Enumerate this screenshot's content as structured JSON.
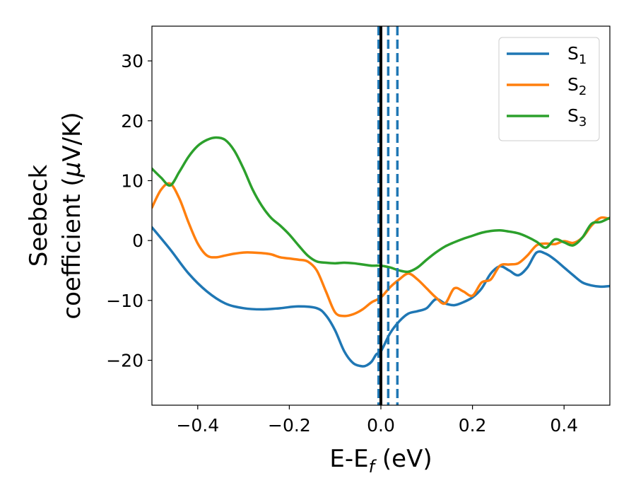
{
  "chart_data": {
    "type": "line",
    "xlabel": {
      "main": "E-E",
      "sub": "f",
      "unit": " (eV)"
    },
    "ylabel": {
      "line1": "Seebeck",
      "line2_prefix": "coefficient  (",
      "mu": "μ",
      "line2_suffix": "V/K)"
    },
    "xlim": [
      -0.5,
      0.5
    ],
    "ylim": [
      -27.5,
      35.8
    ],
    "x_ticks": [
      -0.4,
      -0.2,
      0.0,
      0.2,
      0.4
    ],
    "x_tick_labels": [
      "−0.4",
      "−0.2",
      "0.0",
      "0.2",
      "0.4"
    ],
    "y_ticks": [
      -20,
      -10,
      0,
      10,
      20,
      30
    ],
    "y_tick_labels": [
      "−20",
      "−10",
      "0",
      "10",
      "20",
      "30"
    ],
    "grid": false,
    "legend_position": "top-right",
    "series": [
      {
        "name": "S",
        "sub": "1",
        "color": "#1f77b4",
        "x": [
          -0.5,
          -0.46,
          -0.42,
          -0.38,
          -0.34,
          -0.3,
          -0.26,
          -0.22,
          -0.18,
          -0.14,
          -0.12,
          -0.1,
          -0.08,
          -0.06,
          -0.04,
          -0.03,
          -0.02,
          -0.01,
          0.0,
          0.02,
          0.04,
          0.06,
          0.08,
          0.1,
          0.12,
          0.14,
          0.16,
          0.18,
          0.2,
          0.22,
          0.24,
          0.26,
          0.28,
          0.3,
          0.32,
          0.34,
          0.36,
          0.38,
          0.4,
          0.42,
          0.44,
          0.46,
          0.48,
          0.5
        ],
        "y": [
          2.2,
          -1.5,
          -5.5,
          -8.5,
          -10.5,
          -11.3,
          -11.5,
          -11.3,
          -11.0,
          -11.3,
          -12.5,
          -15.0,
          -18.5,
          -20.5,
          -21.0,
          -20.8,
          -20.2,
          -19.0,
          -18.5,
          -15.5,
          -13.5,
          -12.2,
          -11.8,
          -11.3,
          -9.8,
          -10.5,
          -10.8,
          -10.3,
          -9.5,
          -8.0,
          -5.5,
          -4.3,
          -5.0,
          -5.8,
          -4.5,
          -2.0,
          -2.2,
          -3.2,
          -4.5,
          -5.8,
          -7.0,
          -7.5,
          -7.7,
          -7.6
        ]
      },
      {
        "name": "S",
        "sub": "2",
        "color": "#ff7f0e",
        "x": [
          -0.5,
          -0.48,
          -0.46,
          -0.44,
          -0.42,
          -0.4,
          -0.38,
          -0.36,
          -0.34,
          -0.32,
          -0.3,
          -0.28,
          -0.26,
          -0.24,
          -0.22,
          -0.2,
          -0.18,
          -0.16,
          -0.14,
          -0.12,
          -0.1,
          -0.08,
          -0.06,
          -0.04,
          -0.02,
          0.0,
          0.02,
          0.04,
          0.06,
          0.08,
          0.1,
          0.12,
          0.14,
          0.16,
          0.18,
          0.2,
          0.22,
          0.24,
          0.26,
          0.28,
          0.3,
          0.32,
          0.34,
          0.36,
          0.38,
          0.4,
          0.42,
          0.44,
          0.46,
          0.48,
          0.5
        ],
        "y": [
          5.5,
          8.5,
          9.5,
          7.0,
          3.0,
          -0.5,
          -2.5,
          -2.8,
          -2.5,
          -2.2,
          -2.0,
          -2.0,
          -2.1,
          -2.3,
          -2.8,
          -3.0,
          -3.2,
          -3.5,
          -5.0,
          -8.5,
          -12.0,
          -12.6,
          -12.3,
          -11.5,
          -10.3,
          -9.5,
          -7.8,
          -6.5,
          -5.5,
          -6.5,
          -8.0,
          -9.5,
          -10.5,
          -8.0,
          -8.5,
          -9.2,
          -7.0,
          -6.5,
          -4.2,
          -4.0,
          -3.8,
          -2.5,
          -0.8,
          -0.5,
          -0.6,
          -0.1,
          -0.4,
          0.5,
          2.5,
          3.8,
          3.6
        ]
      },
      {
        "name": "S",
        "sub": "3",
        "color": "#2ca02c",
        "x": [
          -0.5,
          -0.48,
          -0.46,
          -0.44,
          -0.42,
          -0.4,
          -0.38,
          -0.36,
          -0.34,
          -0.32,
          -0.3,
          -0.28,
          -0.26,
          -0.24,
          -0.22,
          -0.2,
          -0.18,
          -0.16,
          -0.14,
          -0.12,
          -0.1,
          -0.08,
          -0.06,
          -0.04,
          -0.02,
          0.0,
          0.02,
          0.04,
          0.06,
          0.08,
          0.1,
          0.12,
          0.14,
          0.16,
          0.18,
          0.2,
          0.22,
          0.24,
          0.26,
          0.28,
          0.3,
          0.32,
          0.34,
          0.36,
          0.38,
          0.4,
          0.42,
          0.44,
          0.46,
          0.48,
          0.5
        ],
        "y": [
          12.0,
          10.5,
          9.2,
          11.5,
          14.0,
          15.8,
          16.8,
          17.2,
          16.8,
          15.0,
          12.0,
          8.5,
          5.8,
          3.8,
          2.5,
          1.0,
          -0.8,
          -2.5,
          -3.5,
          -3.7,
          -3.8,
          -3.7,
          -3.8,
          -4.0,
          -4.2,
          -4.2,
          -4.5,
          -5.0,
          -5.2,
          -4.5,
          -3.2,
          -2.0,
          -1.0,
          -0.3,
          0.3,
          0.8,
          1.3,
          1.6,
          1.7,
          1.5,
          1.2,
          0.6,
          -0.2,
          -1.2,
          0.2,
          -0.3,
          -0.8,
          0.5,
          2.8,
          3.1,
          3.8
        ]
      }
    ],
    "vlines": [
      {
        "x": -0.005,
        "style": "dashed",
        "color": "#1f77b4"
      },
      {
        "x": 0.016,
        "style": "dashed",
        "color": "#1f77b4"
      },
      {
        "x": 0.036,
        "style": "dashed",
        "color": "#1f77b4"
      },
      {
        "x": 0.0,
        "style": "solid",
        "color": "#000000"
      }
    ]
  }
}
